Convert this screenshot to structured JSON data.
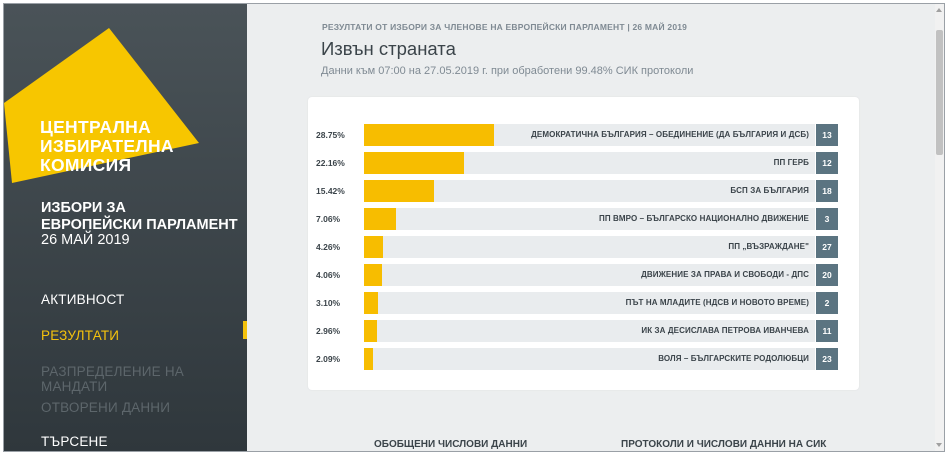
{
  "sidebar": {
    "logo_lines": [
      "ЦЕНТРАЛНА",
      "ИЗБИРАТЕЛНА",
      "КОМИСИЯ"
    ],
    "election_title_lines": [
      "ИЗБОРИ ЗА",
      "ЕВРОПЕЙСКИ ПАРЛАМЕНТ"
    ],
    "election_date": "26 МАЙ 2019",
    "nav": [
      "АКТИВНОСТ",
      "РЕЗУЛТАТИ",
      "РАЗПРЕДЕЛЕНИЕ НА МАНДАТИ",
      "ОТВОРЕНИ ДАННИ",
      "ТЪРСЕНЕ"
    ],
    "active_index": 1,
    "accent_color": "#f4c20d"
  },
  "main": {
    "breadcrumb": "РЕЗУЛТАТИ ОТ ИЗБОРИ ЗА ЧЛЕНОВЕ НА ЕВРОПЕЙСКИ ПАРЛАМЕНТ | 26 МАЙ 2019",
    "title": "Извън страната",
    "subtitle": "Данни към 07:00 на 27.05.2019 г. при обработени 99.48% СИК протоколи"
  },
  "results": [
    {
      "pct": "28.75%",
      "value": 28.75,
      "party": "ДЕМОКРАТИЧНА БЪЛГАРИЯ – ОБЕДИНЕНИЕ (ДА БЪЛГАРИЯ И ДСБ)",
      "num": "13"
    },
    {
      "pct": "22.16%",
      "value": 22.16,
      "party": "ПП ГЕРБ",
      "num": "12"
    },
    {
      "pct": "15.42%",
      "value": 15.42,
      "party": "БСП ЗА БЪЛГАРИЯ",
      "num": "18"
    },
    {
      "pct": "7.06%",
      "value": 7.06,
      "party": "ПП ВМРО – БЪЛГАРСКО НАЦИОНАЛНО ДВИЖЕНИЕ",
      "num": "3"
    },
    {
      "pct": "4.26%",
      "value": 4.26,
      "party": "ПП „ВЪЗРАЖДАНЕ\"",
      "num": "27"
    },
    {
      "pct": "4.06%",
      "value": 4.06,
      "party": "ДВИЖЕНИЕ ЗА ПРАВА И СВОБОДИ - ДПС",
      "num": "20"
    },
    {
      "pct": "3.10%",
      "value": 3.1,
      "party": "ПЪТ НА МЛАДИТЕ (НДСВ И НОВОТО ВРЕМЕ)",
      "num": "2"
    },
    {
      "pct": "2.96%",
      "value": 2.96,
      "party": "ИК ЗА ДЕСИСЛАВА ПЕТРОВА ИВАНЧЕВА",
      "num": "11"
    },
    {
      "pct": "2.09%",
      "value": 2.09,
      "party": "ВОЛЯ – БЪЛГАРСКИТЕ РОДОЛЮБЦИ",
      "num": "23"
    }
  ],
  "bottom_links": [
    "ОБОБЩЕНИ ЧИСЛОВИ ДАННИ",
    "ПРОТОКОЛИ И ЧИСЛОВИ ДАННИ НА СИК"
  ],
  "colors": {
    "bar": "#f7bd00",
    "badge": "#5b7481",
    "sidebar": "#3a4247"
  }
}
